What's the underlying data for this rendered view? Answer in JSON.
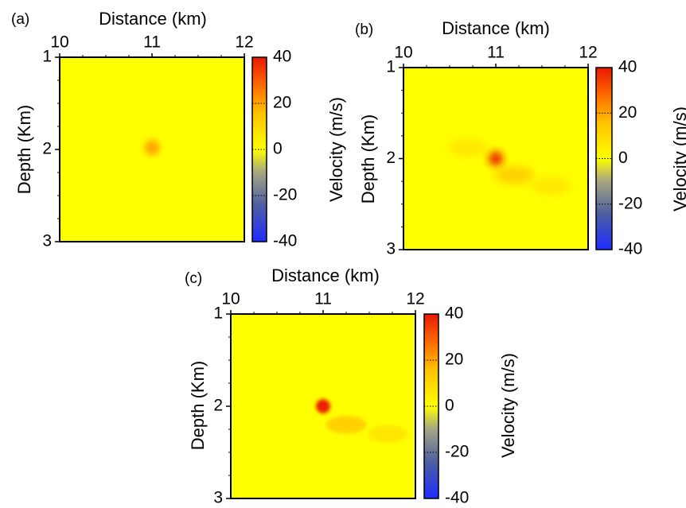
{
  "chart_data": [
    {
      "type": "heatmap",
      "panel_label": "(a)",
      "xlabel": "Distance (km)",
      "ylabel": "Depth (Km)",
      "colorbar_label": "Velocity (m/s)",
      "xlim": [
        10,
        12
      ],
      "ylim": [
        1,
        3
      ],
      "x_ticks": [
        "10",
        "11",
        "12"
      ],
      "y_ticks": [
        "1",
        "2",
        "3"
      ],
      "colorbar_range": [
        -40,
        40
      ],
      "colorbar_ticks": [
        "40",
        "20",
        "0",
        "-20",
        "-40"
      ],
      "background_value": 0,
      "anomalies": [
        {
          "x": 11.0,
          "y": 1.98,
          "value": 14
        }
      ]
    },
    {
      "type": "heatmap",
      "panel_label": "(b)",
      "xlabel": "Distance (km)",
      "ylabel": "Depth (Km)",
      "colorbar_label": "Velocity (m/s)",
      "xlim": [
        10,
        12
      ],
      "ylim": [
        1,
        3
      ],
      "x_ticks": [
        "10",
        "11",
        "12"
      ],
      "y_ticks": [
        "1",
        "2",
        "3"
      ],
      "colorbar_range": [
        -40,
        40
      ],
      "colorbar_ticks": [
        "40",
        "20",
        "0",
        "-20",
        "-40"
      ],
      "background_value": 0,
      "anomalies": [
        {
          "x": 11.0,
          "y": 2.0,
          "value": 40
        },
        {
          "x": 11.2,
          "y": 2.18,
          "value": 12
        },
        {
          "x": 11.6,
          "y": 2.3,
          "value": 9
        },
        {
          "x": 10.7,
          "y": 1.88,
          "value": 7
        }
      ]
    },
    {
      "type": "heatmap",
      "panel_label": "(c)",
      "xlabel": "Distance (km)",
      "ylabel": "Depth (Km)",
      "colorbar_label": "Velocity (m/s)",
      "xlim": [
        10,
        12
      ],
      "ylim": [
        1,
        3
      ],
      "x_ticks": [
        "10",
        "11",
        "12"
      ],
      "y_ticks": [
        "1",
        "2",
        "3"
      ],
      "colorbar_range": [
        -40,
        40
      ],
      "colorbar_ticks": [
        "40",
        "20",
        "0",
        "-20",
        "-40"
      ],
      "background_value": 0,
      "anomalies": [
        {
          "x": 11.0,
          "y": 2.0,
          "value": 38
        },
        {
          "x": 11.25,
          "y": 2.2,
          "value": 10
        },
        {
          "x": 11.7,
          "y": 2.3,
          "value": 7
        }
      ]
    }
  ]
}
